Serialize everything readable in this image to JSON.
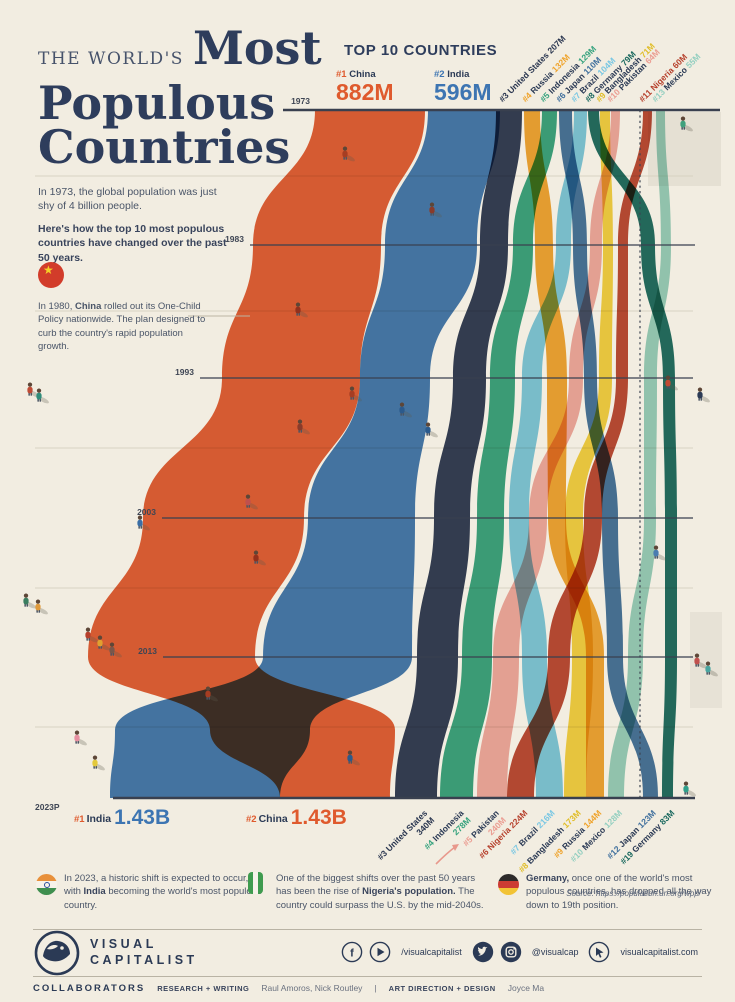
{
  "page": {
    "title_kicker": "THE WORLD'S",
    "title_lines": [
      "Most",
      "Populous",
      "Countries"
    ],
    "intro_1": "In 1973, the global population was just shy of 4 billion people.",
    "intro_2": "Here's how the top 10 most populous countries have changed over the past 50 years."
  },
  "china_note": {
    "parts": [
      [
        "In 1980, ",
        false
      ],
      [
        "China",
        true
      ],
      [
        " rolled out its One-Child Policy nationwide. The plan designed to curb the country's rapid population growth.",
        false
      ]
    ]
  },
  "chart": {
    "heading": "TOP 10 COUNTRIES",
    "year_labels": [
      "1973",
      "1983",
      "1993",
      "2003",
      "2013",
      "2023P"
    ],
    "top_primary": [
      {
        "rank": "#1",
        "name": "China",
        "value": "882M",
        "accent": "#df5a2d"
      },
      {
        "rank": "#2",
        "name": "India",
        "value": "596M",
        "accent": "#3d75b2"
      }
    ],
    "bottom_primary": [
      {
        "rank": "#1",
        "name": "India",
        "value": "1.43B",
        "accent": "#3d75b2",
        "rank_color": "#df5a2d"
      },
      {
        "rank": "#2",
        "name": "China",
        "value": "1.43B",
        "accent": "#df5a2d",
        "rank_color": "#df5a2d"
      }
    ],
    "top_labels": [
      {
        "rank": "#3",
        "name": "United States",
        "value": "207M",
        "accent": "#2a3650",
        "all_accent": true
      },
      {
        "rank": "#4",
        "name": "Russia",
        "value": "132M",
        "accent": "#efa32b"
      },
      {
        "rank": "#5",
        "name": "Indonesia",
        "value": "129M",
        "accent": "#34a27d"
      },
      {
        "rank": "#6",
        "name": "Japan",
        "value": "110M",
        "accent": "#3f6f9d"
      },
      {
        "rank": "#7",
        "name": "Brazil",
        "value": "104M",
        "accent": "#79c7e3"
      },
      {
        "rank": "#8",
        "name": "Germany",
        "value": "79M",
        "accent": "#19685e"
      },
      {
        "rank": "#9",
        "name": "Bangladesh",
        "value": "71M",
        "accent": "#e0bd28"
      },
      {
        "rank": "#10",
        "name": "Pakistan",
        "value": "64M",
        "accent": "#eb9d92"
      },
      {
        "rank": "#11",
        "name": "Nigeria",
        "value": "60M",
        "accent": "#b6402c",
        "all_accent": true
      },
      {
        "rank": "#13",
        "name": "Mexico",
        "value": "55M",
        "accent": "#93cfc0"
      }
    ],
    "bottom_labels": [
      {
        "rank": "#3",
        "name": "United States",
        "value": "340M",
        "accent": "#2a3650",
        "all_accent": true,
        "two_line": true
      },
      {
        "rank": "#4",
        "name": "Indonesia",
        "value": "278M",
        "accent": "#34a27d",
        "two_line": true
      },
      {
        "rank": "#5",
        "name": "Pakistan",
        "value": "240M",
        "accent": "#eb9d92",
        "two_line": true
      },
      {
        "rank": "#6",
        "name": "Nigeria",
        "value": "224M",
        "accent": "#b6402c",
        "all_accent": true
      },
      {
        "rank": "#7",
        "name": "Brazil",
        "value": "216M",
        "accent": "#79c7e3"
      },
      {
        "rank": "#8",
        "name": "Bangladesh",
        "value": "173M",
        "accent": "#e0bd28"
      },
      {
        "rank": "#9",
        "name": "Russia",
        "value": "144M",
        "accent": "#efa32b"
      },
      {
        "rank": "#10",
        "name": "Mexico",
        "value": "128M",
        "accent": "#93cfc0"
      },
      {
        "rank": "#12",
        "name": "Japan",
        "value": "123M",
        "accent": "#3f6f9d"
      },
      {
        "rank": "#19",
        "name": "Germany",
        "value": "83M",
        "accent": "#19685e"
      }
    ]
  },
  "chart_data": {
    "type": "area",
    "variant": "streamgraph / bump chart",
    "title": "The World's Most Populous Countries — Top 10, 1973 to 2023P",
    "unit": "population, millions",
    "x_label": "year",
    "years": [
      1973,
      1983,
      1993,
      2003,
      2013,
      2023
    ],
    "gridlines": "horizontal line per decade, thin line per half-decade",
    "dashed_line": "vertical dotted line marks the top-10 cutoff",
    "note": "endpoint values labeled on graphic; intermediate values estimated from stream widths",
    "series": [
      {
        "name": "China",
        "color": "#df5a2d",
        "rank_1973": 1,
        "rank_2023": 2,
        "values": [
          882,
          1023,
          1178,
          1289,
          1357,
          1430
        ]
      },
      {
        "name": "India",
        "color": "#3d75b2",
        "rank_1973": 2,
        "rank_2023": 1,
        "values": [
          596,
          730,
          905,
          1090,
          1280,
          1430
        ]
      },
      {
        "name": "United States",
        "color": "#2a3650",
        "rank_1973": 3,
        "rank_2023": 3,
        "values": [
          207,
          234,
          260,
          290,
          316,
          340
        ]
      },
      {
        "name": "Russia",
        "color": "#efa32b",
        "rank_1973": 4,
        "rank_2023": 9,
        "values": [
          132,
          142,
          148,
          144,
          143,
          144
        ]
      },
      {
        "name": "Indonesia",
        "color": "#34a27d",
        "rank_1973": 5,
        "rank_2023": 4,
        "values": [
          129,
          157,
          190,
          218,
          249,
          278
        ]
      },
      {
        "name": "Japan",
        "color": "#3f6f9d",
        "rank_1973": 6,
        "rank_2023": 12,
        "values": [
          110,
          119,
          125,
          127,
          127,
          123
        ]
      },
      {
        "name": "Brazil",
        "color": "#79c7e3",
        "rank_1973": 7,
        "rank_2023": 7,
        "values": [
          104,
          131,
          157,
          182,
          201,
          216
        ]
      },
      {
        "name": "Germany",
        "color": "#19685e",
        "rank_1973": 8,
        "rank_2023": 19,
        "values": [
          79,
          78,
          81,
          82,
          81,
          83
        ]
      },
      {
        "name": "Bangladesh",
        "color": "#f2d13c",
        "rank_1973": 9,
        "rank_2023": 8,
        "values": [
          71,
          93,
          115,
          139,
          157,
          173
        ]
      },
      {
        "name": "Pakistan",
        "color": "#efa8a0",
        "rank_1973": 10,
        "rank_2023": 5,
        "values": [
          64,
          90,
          122,
          154,
          191,
          240
        ]
      },
      {
        "name": "Nigeria",
        "color": "#b8432c",
        "rank_1973": 11,
        "rank_2023": 6,
        "values": [
          60,
          80,
          102,
          132,
          171,
          224
        ]
      },
      {
        "name": "Mexico",
        "color": "#93cfc0",
        "rank_1973": 13,
        "rank_2023": 10,
        "values": [
          55,
          72,
          88,
          104,
          118,
          128
        ]
      }
    ]
  },
  "notes": [
    {
      "flag": "india",
      "parts": [
        [
          "In 2023, a historic shift is expected to occur, with ",
          false
        ],
        [
          "India",
          true
        ],
        [
          " becoming the world's most populous country.",
          false
        ]
      ]
    },
    {
      "flag": "nigeria",
      "parts": [
        [
          "One of the biggest shifts over the past 50 years has been the rise of ",
          false
        ],
        [
          "Nigeria's population.",
          true
        ],
        [
          " The country could surpass the U.S. by the mid-2040s.",
          false
        ]
      ]
    },
    {
      "flag": "germany",
      "parts": [
        [
          "Germany,",
          true
        ],
        [
          " once one of the world's most populous countries, has dropped all the way down to 19th position.",
          false
        ]
      ]
    }
  ],
  "source": "Source: https://population.un.org/wpp/",
  "footer": {
    "logo_line1": "VISUAL",
    "logo_line2": "CAPITALIST",
    "social_handle_1": "/visualcapitalist",
    "social_handle_2": "@visualcap",
    "social_handle_3": "visualcapitalist.com",
    "collaborators_label": "COLLABORATORS",
    "research_label": "RESEARCH + WRITING",
    "research_names": "Raul Amoros, Nick Routley",
    "divider": "|",
    "art_label": "ART DIRECTION + DESIGN",
    "art_names": "Joyce Ma"
  }
}
